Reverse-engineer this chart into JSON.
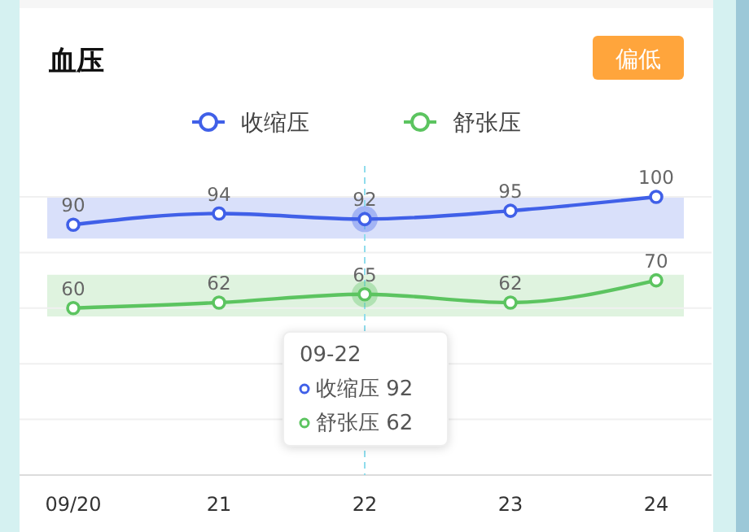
{
  "chart_data": {
    "type": "line",
    "title": "血压",
    "categories": [
      "09/20",
      "21",
      "22",
      "23",
      "24"
    ],
    "series": [
      {
        "name": "收缩压",
        "color": "#4060e8",
        "values": [
          90,
          94,
          92,
          95,
          100
        ]
      },
      {
        "name": "舒张压",
        "color": "#5cc460",
        "values": [
          60,
          62,
          65,
          62,
          70
        ]
      }
    ],
    "ylim": [
      0,
      100
    ],
    "yticks": [
      {
        "value": 0,
        "label": null
      },
      {
        "value": 20,
        "label": null
      },
      {
        "value": 40,
        "label": null
      },
      {
        "value": 60,
        "label": null
      },
      {
        "value": 80,
        "label": null
      },
      {
        "value": 100,
        "label": null
      }
    ],
    "tick_labels": "x",
    "grid": "y",
    "legend": "top",
    "marker": "circle",
    "line_style": "solid",
    "data_labels": true,
    "bands": [
      {
        "axis": "y",
        "from": 85,
        "to": 100,
        "color": "#d9e0fa"
      },
      {
        "axis": "y",
        "from": 57,
        "to": 72,
        "color": "#dff3df"
      }
    ],
    "ref_lines": [
      {
        "axis": "x",
        "value": "22",
        "color": "#8fdcec",
        "line_style": "dashed"
      }
    ],
    "annotations": [
      "偏低",
      "09-22",
      "收缩压 92",
      "舒张压 62"
    ]
  }
}
